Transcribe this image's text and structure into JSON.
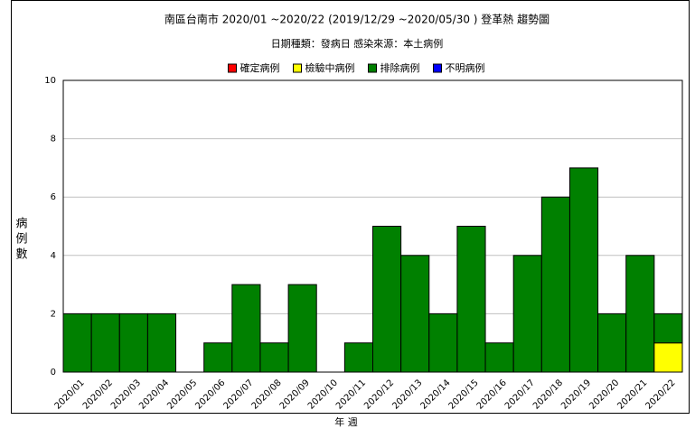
{
  "chart_data": {
    "type": "stacked_bar",
    "title": "南區台南市 2020/01 ~2020/22 (2019/12/29 ~2020/05/30 ) 登革熱 趨勢圖",
    "subtitle": "日期種類：發病日   感染來源：本土病例",
    "y_label": "病例數",
    "x_label": "年 週",
    "categories": [
      "2020/01",
      "2020/02",
      "2020/03",
      "2020/04",
      "2020/05",
      "2020/06",
      "2020/07",
      "2020/08",
      "2020/09",
      "2020/10",
      "2020/11",
      "2020/12",
      "2020/13",
      "2020/14",
      "2020/15",
      "2020/16",
      "2020/17",
      "2020/18",
      "2020/19",
      "2020/20",
      "2020/21",
      "2020/22"
    ],
    "series": [
      {
        "name": "確定病例",
        "color": "#ff0000",
        "values": [
          0,
          0,
          0,
          0,
          0,
          0,
          0,
          0,
          0,
          0,
          0,
          0,
          0,
          0,
          0,
          0,
          0,
          0,
          0,
          0,
          0,
          0
        ]
      },
      {
        "name": "檢驗中病例",
        "color": "#ffff00",
        "values": [
          0,
          0,
          0,
          0,
          0,
          0,
          0,
          0,
          0,
          0,
          0,
          0,
          0,
          0,
          0,
          0,
          0,
          0,
          0,
          0,
          0,
          1
        ]
      },
      {
        "name": "排除病例",
        "color": "#008000",
        "values": [
          2,
          2,
          2,
          2,
          0,
          1,
          3,
          1,
          3,
          0,
          1,
          5,
          4,
          2,
          5,
          1,
          4,
          6,
          7,
          2,
          4,
          1
        ]
      },
      {
        "name": "不明病例",
        "color": "#0000ff",
        "values": [
          0,
          0,
          0,
          0,
          0,
          0,
          0,
          0,
          0,
          0,
          0,
          0,
          0,
          0,
          0,
          0,
          0,
          0,
          0,
          0,
          0,
          0
        ]
      }
    ],
    "ylim": [
      0,
      10
    ],
    "yticks": [
      0,
      2,
      4,
      6,
      8,
      10
    ],
    "grid": true
  }
}
